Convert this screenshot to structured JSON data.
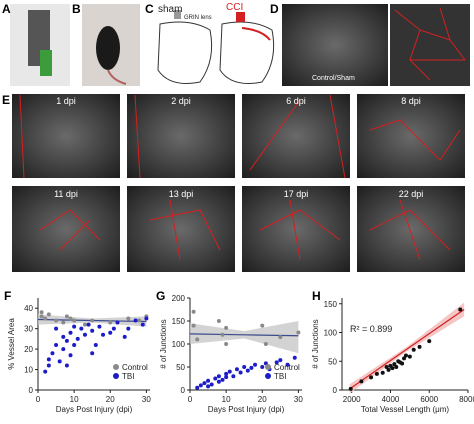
{
  "panels": {
    "a": "A",
    "b": "B",
    "c": "C",
    "d": "D",
    "e": "E",
    "f": "F",
    "g": "G",
    "h": "H",
    "c_sham": "sham",
    "c_cci": "CCI",
    "c_grin": "GRIN lens",
    "d_label": "Control/Sham",
    "e_labels": [
      "1 dpi",
      "2 dpi",
      "6 dpi",
      "8 dpi",
      "11 dpi",
      "13 dpi",
      "17 dpi",
      "22 dpi"
    ]
  },
  "chart_data": [
    {
      "type": "scatter",
      "xlabel": "Days Post Injury (dpi)",
      "ylabel": "% Vessel Area",
      "xlim": [
        0,
        31
      ],
      "ylim": [
        0,
        45
      ],
      "xticks": [
        0,
        10,
        20,
        30
      ],
      "yticks": [
        0,
        10,
        20,
        30,
        40
      ],
      "legend": "lower right",
      "series": [
        {
          "name": "Control",
          "color": "#8a8a8a",
          "x": [
            1,
            1,
            2,
            3,
            5,
            7,
            8,
            9,
            10,
            13,
            15,
            20,
            25,
            28,
            30
          ],
          "values": [
            38,
            36,
            35,
            37,
            34,
            33,
            36,
            35,
            34,
            32,
            34,
            33,
            35,
            34,
            36
          ]
        },
        {
          "name": "TBI",
          "color": "#1c1cc8",
          "x": [
            2,
            3,
            3,
            4,
            5,
            5,
            6,
            7,
            7,
            8,
            8,
            9,
            9,
            10,
            10,
            11,
            12,
            13,
            14,
            15,
            15,
            16,
            17,
            18,
            20,
            21,
            22,
            24,
            25,
            27,
            29,
            30
          ],
          "values": [
            9,
            12,
            15,
            18,
            22,
            30,
            14,
            20,
            26,
            12,
            24,
            28,
            17,
            31,
            22,
            25,
            30,
            27,
            32,
            18,
            29,
            22,
            31,
            27,
            28,
            30,
            33,
            26,
            30,
            34,
            32,
            35
          ]
        }
      ],
      "fit": {
        "color": "#3a4a8c",
        "band_color": "#c8c8c8",
        "x": [
          0,
          15,
          30
        ],
        "values": [
          34.5,
          34,
          33.5
        ],
        "lower": [
          32,
          33,
          31
        ],
        "upper": [
          37,
          35,
          36
        ]
      }
    },
    {
      "type": "scatter",
      "xlabel": "Days Post Injury (dpi)",
      "ylabel": "# of Junctions",
      "xlim": [
        0,
        31
      ],
      "ylim": [
        0,
        200
      ],
      "xticks": [
        0,
        10,
        20,
        30
      ],
      "yticks": [
        0,
        50,
        100,
        150,
        200
      ],
      "legend": "lower right",
      "series": [
        {
          "name": "Control",
          "color": "#8a8a8a",
          "x": [
            1,
            1,
            2,
            8,
            9,
            10,
            10,
            20,
            21,
            25,
            30
          ],
          "values": [
            170,
            140,
            110,
            150,
            120,
            135,
            100,
            140,
            100,
            115,
            125
          ]
        },
        {
          "name": "TBI",
          "color": "#1c1cc8",
          "x": [
            2,
            3,
            4,
            5,
            5,
            6,
            7,
            8,
            8,
            9,
            10,
            10,
            11,
            12,
            13,
            14,
            15,
            16,
            17,
            18,
            20,
            21,
            22,
            24,
            25,
            27,
            29
          ],
          "values": [
            5,
            10,
            15,
            8,
            20,
            12,
            25,
            18,
            30,
            22,
            35,
            28,
            40,
            30,
            45,
            38,
            50,
            42,
            48,
            55,
            50,
            58,
            45,
            60,
            65,
            55,
            70
          ]
        }
      ],
      "fit": {
        "color": "#3a4a8c",
        "band_color": "#c8c8c8",
        "x": [
          0,
          15,
          30
        ],
        "values": [
          122,
          120,
          118
        ],
        "lower": [
          100,
          112,
          80
        ],
        "upper": [
          145,
          128,
          150
        ]
      }
    },
    {
      "type": "scatter",
      "xlabel": "Total Vessel Length (μm)",
      "ylabel": "# of Junctions",
      "xlim": [
        1500,
        8000
      ],
      "ylim": [
        0,
        160
      ],
      "xticks": [
        2000,
        4000,
        6000,
        8000
      ],
      "yticks": [
        0,
        50,
        100,
        150
      ],
      "annotation": "R² = 0.899",
      "series": [
        {
          "name": "Junctions",
          "color": "#111111",
          "x": [
            1950,
            2500,
            3000,
            3300,
            3600,
            3800,
            3900,
            4000,
            4100,
            4200,
            4300,
            4400,
            4500,
            4600,
            4700,
            4800,
            5000,
            5200,
            5500,
            6000,
            7600
          ],
          "values": [
            2,
            15,
            22,
            28,
            30,
            40,
            35,
            42,
            38,
            45,
            40,
            50,
            48,
            46,
            55,
            60,
            58,
            70,
            75,
            85,
            140
          ]
        }
      ],
      "fit": {
        "color": "#d42020",
        "band_color": "#f2b8b8",
        "x": [
          1900,
          4800,
          7800
        ],
        "values": [
          2,
          70,
          140
        ],
        "lower": [
          -6,
          66,
          128
        ],
        "upper": [
          10,
          74,
          152
        ]
      }
    }
  ]
}
